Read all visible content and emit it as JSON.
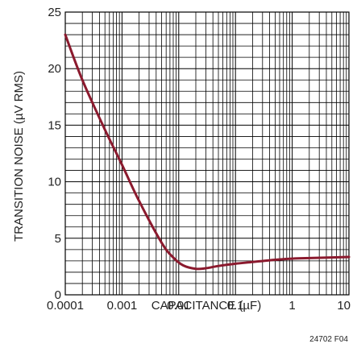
{
  "chart_data": {
    "type": "line",
    "title": "",
    "xlabel": "CAPACITANCE (µF)",
    "ylabel": "TRANSITION NOISE (µV RMS)",
    "xscale": "log",
    "xlim": [
      0.0001,
      10
    ],
    "ylim": [
      0,
      25
    ],
    "grid": true,
    "x_ticks": [
      "0.0001",
      "0.001",
      "0.01",
      "0.1",
      "1",
      "10"
    ],
    "y_ticks": [
      "0",
      "5",
      "10",
      "15",
      "20",
      "25"
    ],
    "line_color": "#8b1a2e",
    "series": [
      {
        "x": [
          0.0001,
          0.0002,
          0.0005,
          0.001,
          0.002,
          0.005,
          0.008,
          0.012,
          0.02,
          0.03,
          0.05,
          0.1,
          0.2,
          0.5,
          1,
          2,
          5,
          10
        ],
        "y": [
          23.0,
          19.0,
          14.6,
          11.5,
          8.3,
          4.6,
          3.3,
          2.6,
          2.3,
          2.35,
          2.55,
          2.75,
          2.9,
          3.1,
          3.2,
          3.25,
          3.3,
          3.35
        ]
      }
    ],
    "figure_code": "24702 F04"
  }
}
